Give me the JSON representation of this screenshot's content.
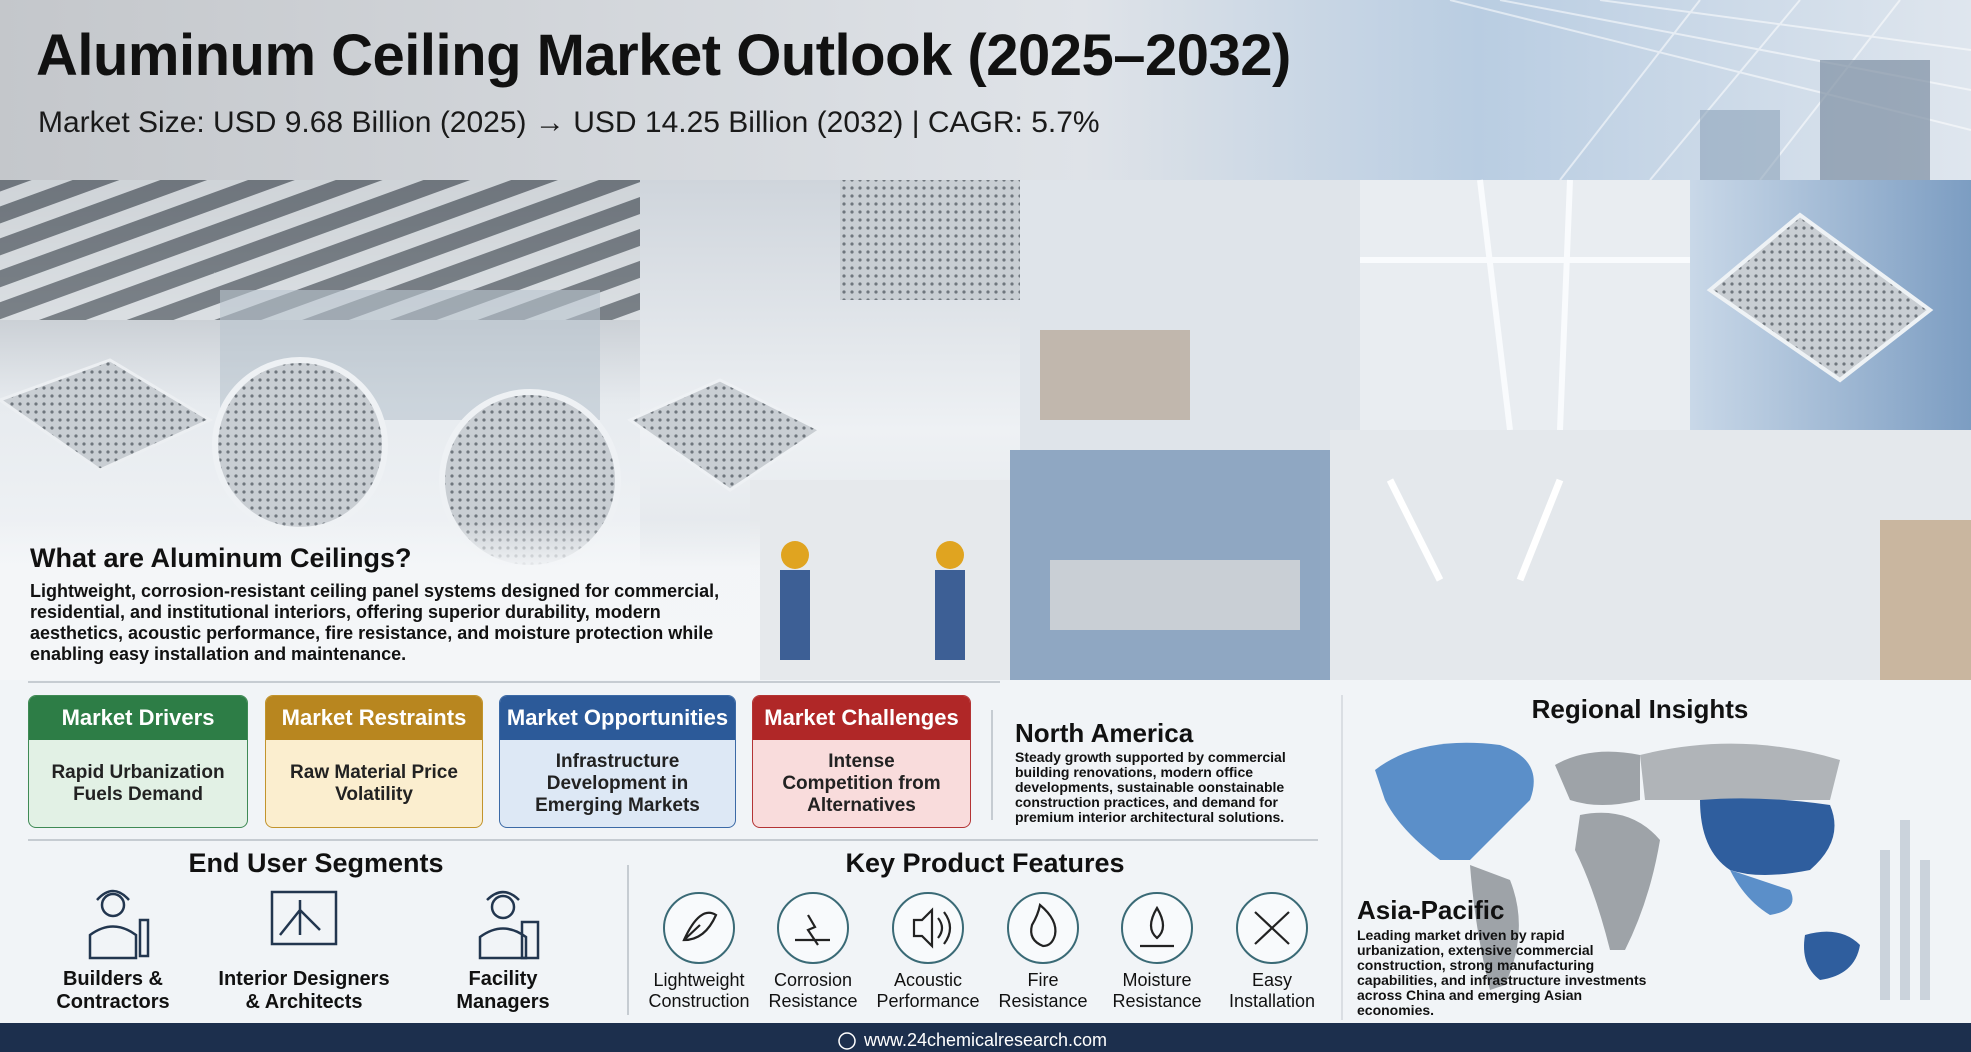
{
  "header": {
    "title": "Aluminum Ceiling Market Outlook (2025–2032)",
    "subtitle": "Market Size: USD 9.68 Billion (2025) → USD 14.25 Billion (2032) | CAGR: 5.7%"
  },
  "intro": {
    "heading": "What are Aluminum Ceilings?",
    "text": "Lightweight, corrosion-resistant ceiling panel systems designed for commercial, residential, and institutional interiors, offering superior durability, modern aesthetics, acoustic performance, fire resistance, and moisture protection while enabling easy installation and maintenance."
  },
  "factors": [
    {
      "title": "Market Drivers",
      "text": "Rapid Urbanization Fuels Demand"
    },
    {
      "title": "Market Restraints",
      "text": "Raw Material Price Volatility"
    },
    {
      "title": "Market Opportunities",
      "text": "Infrastructure Development in Emerging Markets"
    },
    {
      "title": "Market Challenges",
      "text": "Intense Competition from Alternatives"
    }
  ],
  "regions": {
    "title": "Regional Insights",
    "items": [
      {
        "name": "North America",
        "text": "Steady growth supported by commercial building renovations, modern office developments, sustainable oonstainable construction practices, and demand for premium interior architectural solutions."
      },
      {
        "name": "Asia-Pacific",
        "text": "Leading market driven by rapid urbanization, extensive commercial construction, strong manufacturing capabilities, and infrastructure investments across China and emerging Asian economies."
      }
    ]
  },
  "end_user_segments": {
    "title": "End User Segments",
    "items": [
      "Builders & Contractors",
      "Interior Designers & Architects",
      "Facility Managers"
    ]
  },
  "product_features": {
    "title": "Key Product Features",
    "items": [
      "Lightweight Construction",
      "Corrosion Resistance",
      "Acoustic Performance",
      "Fire Resistance",
      "Moisture Resistance",
      "Easy Installation"
    ]
  },
  "footer": {
    "url": "www.24chemicalresearch.com"
  }
}
